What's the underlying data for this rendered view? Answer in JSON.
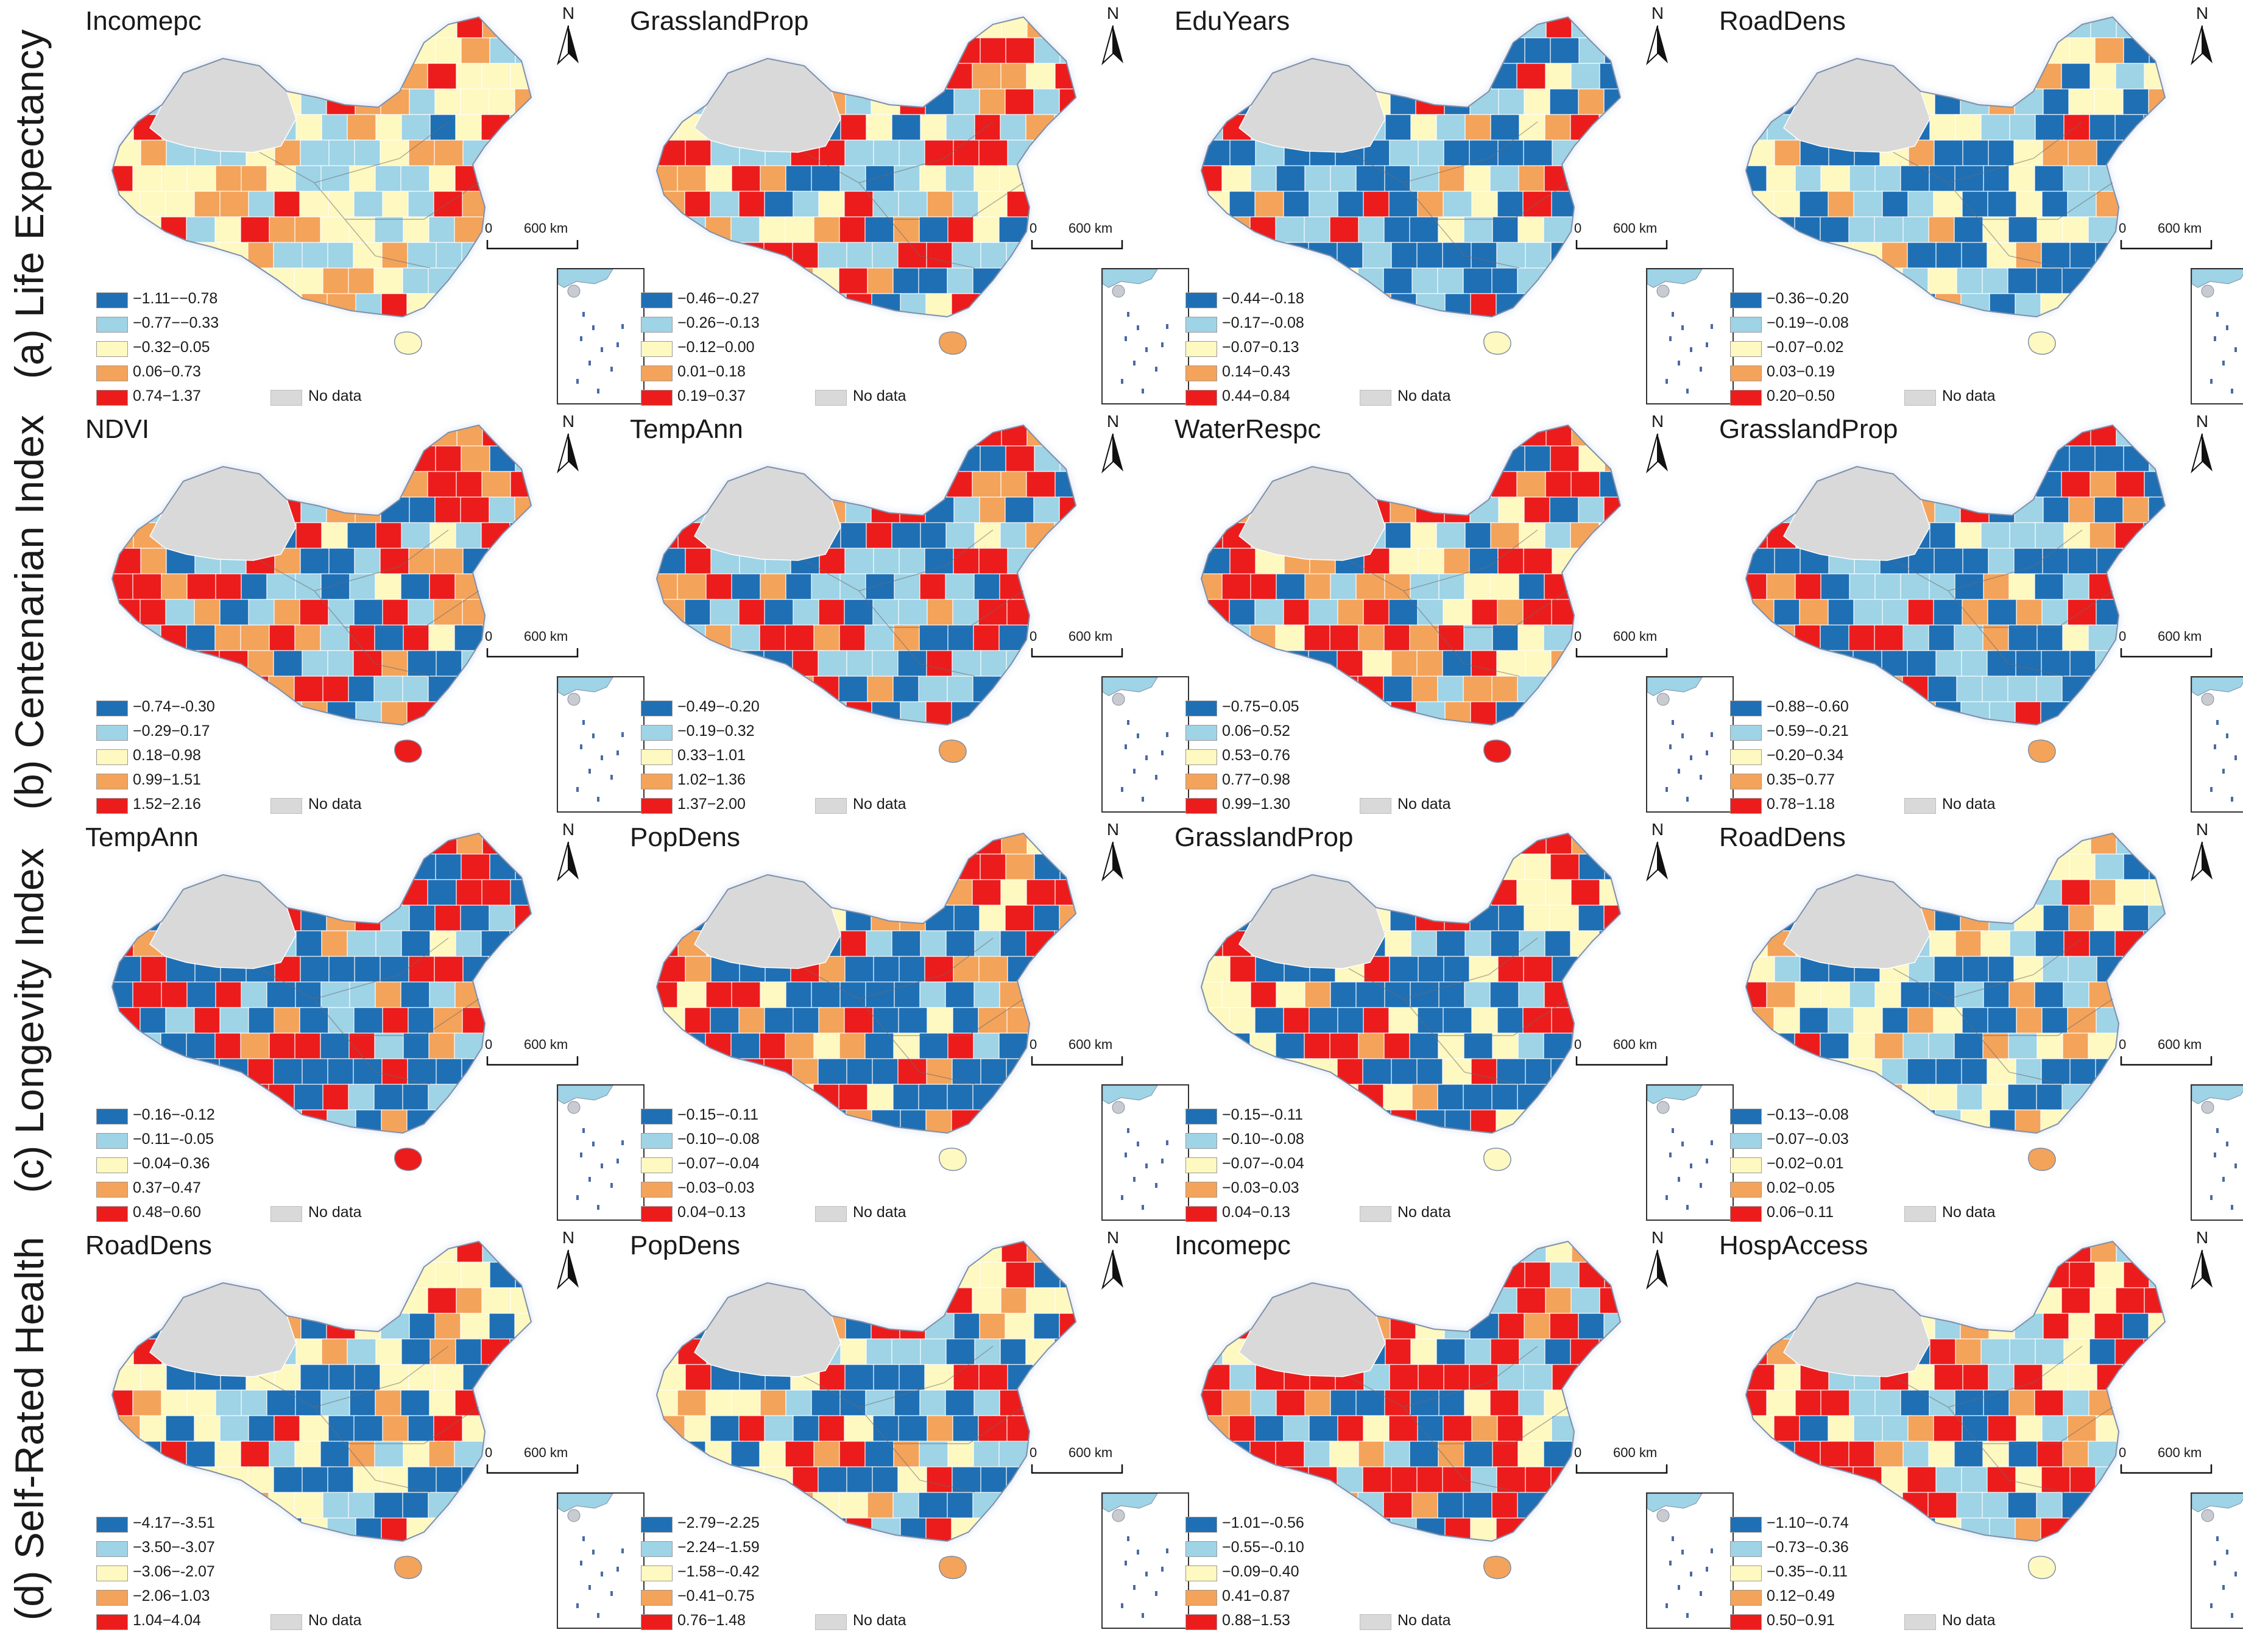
{
  "palette": {
    "class1": "#1f6fb4",
    "class2": "#9fd3e6",
    "class3": "#fef8c1",
    "class4": "#f4a35a",
    "class5": "#ec1c1c",
    "nodata": "#d9d9d9"
  },
  "common": {
    "north": "N",
    "scale_start": "0",
    "scale_end": "600 km",
    "nodata": "No data"
  },
  "rows": [
    {
      "label": "(a) Life Expectancy"
    },
    {
      "label": "(b) Centenarian Index"
    },
    {
      "label": "(c) Longevity Index"
    },
    {
      "label": "(d) Self-Rated Health"
    }
  ],
  "panels": [
    {
      "title": "Incomepc",
      "legend": [
        "−1.11−−0.78",
        "−0.77−−0.33",
        "−0.32−0.05",
        "0.06−0.73",
        "0.74−1.37"
      ]
    },
    {
      "title": "GrasslandProp",
      "legend": [
        "−0.46−-0.27",
        "−0.26−-0.13",
        "−0.12−0.00",
        "0.01−0.18",
        "0.19−0.37"
      ]
    },
    {
      "title": "EduYears",
      "legend": [
        "−0.44−-0.18",
        "−0.17−-0.08",
        "−0.07−0.13",
        "0.14−0.43",
        "0.44−0.84"
      ]
    },
    {
      "title": "RoadDens",
      "legend": [
        "−0.36−-0.20",
        "−0.19−-0.08",
        "−0.07−0.02",
        "0.03−0.19",
        "0.20−0.50"
      ]
    },
    {
      "title": "NDVI",
      "legend": [
        "−0.74−-0.30",
        "−0.29−0.17",
        "0.18−0.98",
        "0.99−1.51",
        "1.52−2.16"
      ]
    },
    {
      "title": "TempAnn",
      "legend": [
        "−0.49−-0.20",
        "−0.19−0.32",
        "0.33−1.01",
        "1.02−1.36",
        "1.37−2.00"
      ]
    },
    {
      "title": "WaterRespc",
      "legend": [
        "−0.75−0.05",
        "0.06−0.52",
        "0.53−0.76",
        "0.77−0.98",
        "0.99−1.30"
      ]
    },
    {
      "title": "GrasslandProp",
      "legend": [
        "−0.88−-0.60",
        "−0.59−-0.21",
        "−0.20−0.34",
        "0.35−0.77",
        "0.78−1.18"
      ]
    },
    {
      "title": "TempAnn",
      "legend": [
        "−0.16−-0.12",
        "−0.11−-0.05",
        "−0.04−0.36",
        "0.37−0.47",
        "0.48−0.60"
      ]
    },
    {
      "title": "PopDens",
      "legend": [
        "−0.15−-0.11",
        "−0.10−-0.08",
        "−0.07−-0.04",
        "−0.03−0.03",
        "0.04−0.13"
      ]
    },
    {
      "title": "GrasslandProp",
      "legend": [
        "−0.15−-0.11",
        "−0.10−-0.08",
        "−0.07−-0.04",
        "−0.03−0.03",
        "0.04−0.13"
      ]
    },
    {
      "title": "RoadDens",
      "legend": [
        "−0.13−-0.08",
        "−0.07−-0.03",
        "−0.02−0.01",
        "0.02−0.05",
        "0.06−0.11"
      ]
    },
    {
      "title": "RoadDens",
      "legend": [
        "−4.17−-3.51",
        "−3.50−-3.07",
        "−3.06−-2.07",
        "−2.06−1.03",
        "1.04−4.04"
      ]
    },
    {
      "title": "PopDens",
      "legend": [
        "−2.79−-2.25",
        "−2.24−-1.59",
        "−1.58−-0.42",
        "−0.41−0.75",
        "0.76−1.48"
      ]
    },
    {
      "title": "Incomepc",
      "legend": [
        "−1.01−-0.56",
        "−0.55−-0.10",
        "−0.09−0.40",
        "0.41−0.87",
        "0.88−1.53"
      ]
    },
    {
      "title": "HospAccess",
      "legend": [
        "−1.10−-0.74",
        "−0.73−-0.36",
        "−0.35−-0.11",
        "0.12−0.49",
        "0.50−0.91"
      ]
    }
  ]
}
